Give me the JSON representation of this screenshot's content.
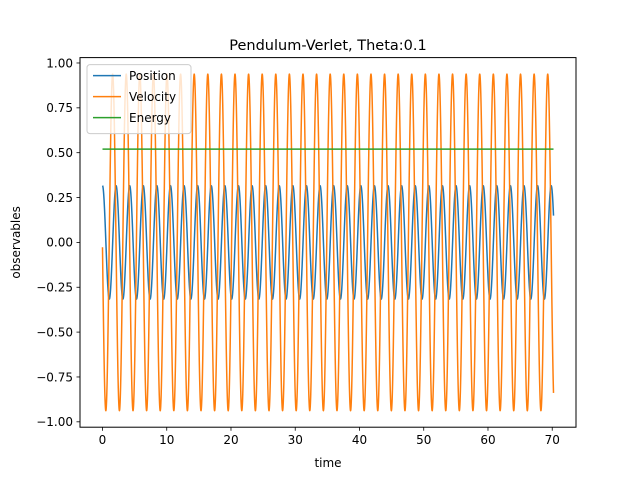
{
  "chart_data": {
    "type": "line",
    "title": "Pendulum-Verlet, Theta:0.1",
    "xlabel": "time",
    "ylabel": "observables",
    "xlim": [
      -3.5,
      73.7
    ],
    "ylim": [
      -1.03,
      1.03
    ],
    "xticks": [
      0,
      10,
      20,
      30,
      40,
      50,
      60,
      70
    ],
    "yticks": [
      -1.0,
      -0.75,
      -0.5,
      -0.25,
      0.0,
      0.25,
      0.5,
      0.75,
      1.0
    ],
    "xtick_labels": [
      "0",
      "10",
      "20",
      "30",
      "40",
      "50",
      "60",
      "70"
    ],
    "ytick_labels": [
      "−1.00",
      "−0.75",
      "−0.50",
      "−0.25",
      "0.00",
      "0.25",
      "0.50",
      "0.75",
      "1.00"
    ],
    "legend_position": "upper-left",
    "grid": false,
    "series": [
      {
        "name": "Position",
        "color": "#1f77b4",
        "function": "amplitude*cos(omega*t)",
        "amplitude": 0.316,
        "omega": 2.969,
        "phase": 0.0,
        "x_range": [
          0,
          70.2
        ],
        "samples": 4000
      },
      {
        "name": "Velocity",
        "color": "#ff7f0e",
        "function": "-amplitude*sin(omega*t + phase)",
        "amplitude": 0.938,
        "omega": 2.969,
        "phase": 0.0285,
        "x_range": [
          0,
          70.2
        ],
        "samples": 4000
      },
      {
        "name": "Energy",
        "color": "#2ca02c",
        "x": [
          0,
          70.2
        ],
        "y": [
          0.52,
          0.52
        ]
      }
    ]
  }
}
